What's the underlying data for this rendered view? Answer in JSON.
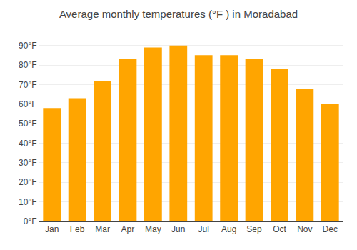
{
  "chart_data": {
    "type": "bar",
    "title": "Average monthly temperatures (°F ) in Morādābād",
    "categories": [
      "Jan",
      "Feb",
      "Mar",
      "Apr",
      "May",
      "Jun",
      "Jul",
      "Aug",
      "Sep",
      "Oct",
      "Nov",
      "Dec"
    ],
    "values": [
      58,
      63,
      72,
      83,
      89,
      90,
      85,
      85,
      83,
      78,
      68,
      60
    ],
    "color": "#FFA500",
    "ylim": [
      0,
      95
    ],
    "yticks": [
      {
        "value": 0,
        "label": "0°F"
      },
      {
        "value": 10,
        "label": "10°F"
      },
      {
        "value": 20,
        "label": "20°F"
      },
      {
        "value": 30,
        "label": "30°F"
      },
      {
        "value": 40,
        "label": "40°F"
      },
      {
        "value": 50,
        "label": "50°F"
      },
      {
        "value": 60,
        "label": "60°F"
      },
      {
        "value": 70,
        "label": "70°F"
      },
      {
        "value": 80,
        "label": "80°F"
      },
      {
        "value": 90,
        "label": "90°F"
      }
    ],
    "grid": true
  }
}
